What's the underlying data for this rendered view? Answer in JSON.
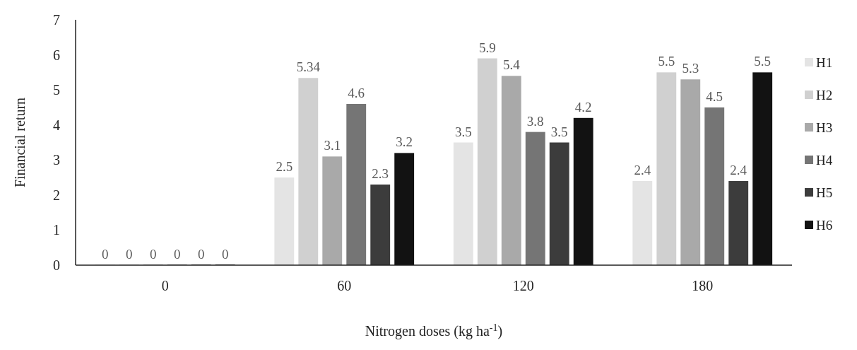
{
  "chart_data": {
    "type": "bar",
    "xlabel": "Nitrogen doses (kg ha$^{-1}$)",
    "ylabel": "Financial return",
    "categories": [
      "0",
      "60",
      "120",
      "180"
    ],
    "series": [
      {
        "name": "H1",
        "color": "#e4e4e4",
        "values": [
          0,
          2.5,
          3.5,
          2.4
        ]
      },
      {
        "name": "H2",
        "color": "#d0d0d0",
        "values": [
          0,
          5.34,
          5.9,
          5.5
        ]
      },
      {
        "name": "H3",
        "color": "#a9a9a9",
        "values": [
          0,
          3.1,
          5.4,
          5.3
        ]
      },
      {
        "name": "H4",
        "color": "#757575",
        "values": [
          0,
          4.6,
          3.8,
          4.5
        ]
      },
      {
        "name": "H5",
        "color": "#3c3c3c",
        "values": [
          0,
          2.3,
          3.5,
          2.4
        ]
      },
      {
        "name": "H6",
        "color": "#121212",
        "values": [
          0,
          3.2,
          4.2,
          5.5
        ]
      }
    ],
    "ylim": [
      0,
      7
    ],
    "yticks": [
      0,
      1,
      2,
      3,
      4,
      5,
      6,
      7
    ],
    "data_labels": true,
    "legend": "right",
    "grid": false
  }
}
